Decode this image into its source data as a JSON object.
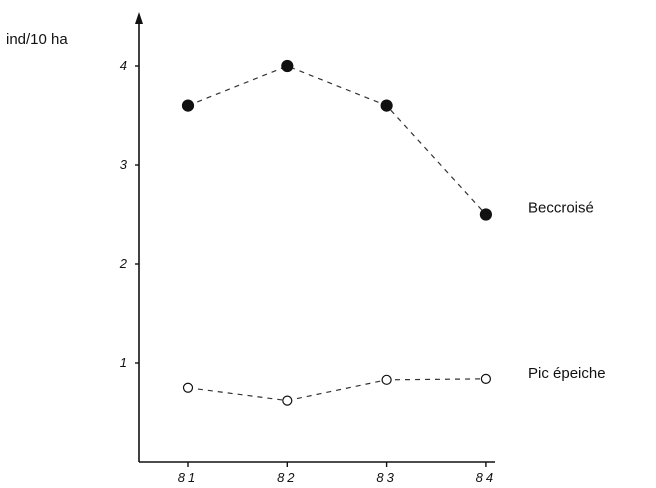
{
  "chart_data": {
    "type": "line",
    "title": "",
    "xlabel": "",
    "ylabel": "ind/10 ha",
    "categories": [
      "81",
      "82",
      "83",
      "84"
    ],
    "y_ticks": [
      "1",
      "2",
      "3",
      "4"
    ],
    "ylim": [
      0,
      4.6
    ],
    "grid": false,
    "legend": "inline labels at right end of each series",
    "series": [
      {
        "name": "Beccroisé",
        "marker": "filled-circle",
        "values": [
          3.6,
          4.0,
          3.6,
          2.5
        ]
      },
      {
        "name": "Pic épeiche",
        "marker": "open-circle",
        "values": [
          0.75,
          0.62,
          0.83,
          0.84
        ]
      }
    ]
  }
}
